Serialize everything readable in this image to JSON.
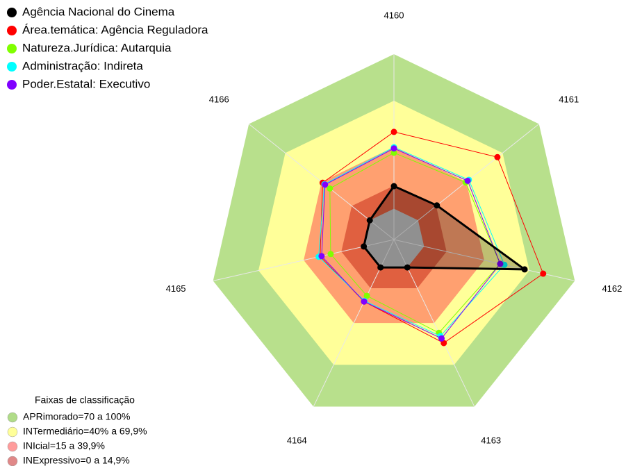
{
  "chart_data": {
    "type": "radar",
    "categories": [
      "4160",
      "4161",
      "4162",
      "4163",
      "4164",
      "4165",
      "4166"
    ],
    "ylim": [
      -20,
      100
    ],
    "series": [
      {
        "name": "Agência Nacional do Cinema",
        "color": "#000000",
        "values": [
          14.6,
          15.5,
          66.7,
          0,
          0,
          0,
          0
        ]
      },
      {
        "name": "Área.temática: Agência Reguladora",
        "color": "#ff0000",
        "values": [
          49.7,
          65.6,
          79,
          54.3,
          24.5,
          29,
          39
        ]
      },
      {
        "name": "Natureza.Jurídica: Autarquia",
        "color": "#80ff00",
        "values": [
          36.2,
          39.3,
          50.5,
          47,
          20.4,
          22,
          33
        ]
      },
      {
        "name": "Administração: Indireta",
        "color": "#00ffff",
        "values": [
          39.8,
          42,
          53.3,
          49.3,
          24,
          30,
          37.5
        ]
      },
      {
        "name": "Poder.Estatal: Executivo",
        "color": "#8000ff",
        "values": [
          39,
          41,
          50.5,
          51,
          24.5,
          28,
          37
        ]
      }
    ],
    "bands_title": "Faixas de classificação",
    "bands": [
      {
        "label": "APRimorado=70 a 100%",
        "from": 70,
        "to": 100,
        "color": "#b8e08c",
        "swatch": "#b0dc88"
      },
      {
        "label": "INTermediário=40% a 69,9%",
        "from": 40,
        "to": 69.9,
        "color": "#ffff99",
        "swatch": "#ffff99"
      },
      {
        "label": "INIcial=15 a 39,9%",
        "from": 15,
        "to": 39.9,
        "color": "#ffa070",
        "swatch": "#ff9c9c"
      },
      {
        "label": "INExpressivo=0 a 14,9%",
        "from": 0,
        "to": 14.9,
        "color": "#e06040",
        "swatch": "#e08888"
      }
    ]
  }
}
